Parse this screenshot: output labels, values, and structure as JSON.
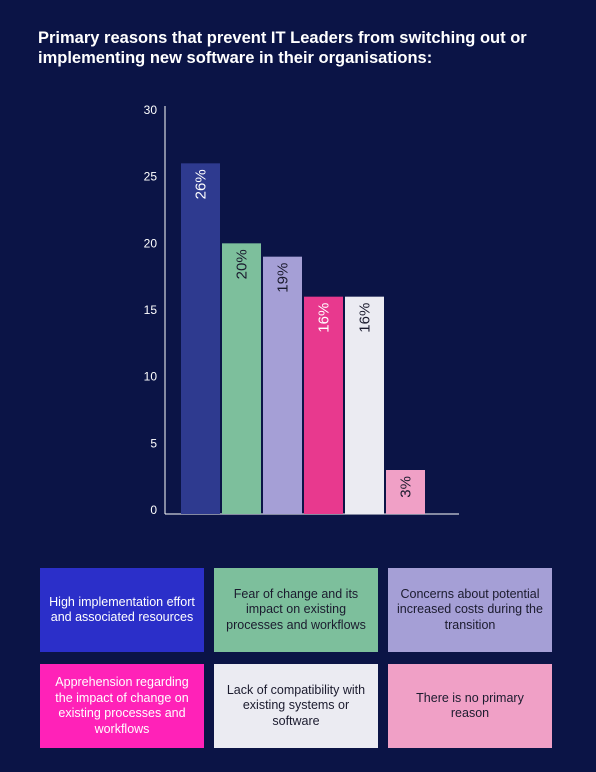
{
  "title": "Primary reasons that prevent IT Leaders from switching out or implementing new software in their organisations:",
  "chart_data": {
    "type": "bar",
    "categories": [
      "High implementation effort and associated resources",
      "Fear of change and its impact on existing processes and workflows",
      "Concerns about potential increased costs during the transition",
      "Apprehension regarding the impact of change on existing processes and workflows",
      "Lack of compatibility with existing systems or software",
      "There is no primary reason"
    ],
    "values": [
      26,
      20,
      19,
      16,
      16,
      3
    ],
    "data_labels": [
      "26%",
      "20%",
      "19%",
      "16%",
      "16%",
      "3%"
    ],
    "ylim": [
      0,
      30
    ],
    "yticks": [
      0,
      5,
      10,
      15,
      20,
      25,
      30
    ],
    "bar_colors": [
      "#2e3a8f",
      "#7dbf9c",
      "#a59fd6",
      "#e8398e",
      "#ebebf2",
      "#f0a0c6"
    ],
    "label_colors": [
      "#ffffff",
      "#1b1b2e",
      "#1b1b2e",
      "#ffffff",
      "#1b1b2e",
      "#1b1b2e"
    ],
    "grid": false,
    "legend": "bottom"
  },
  "legend": [
    {
      "label": "High implementation effort and associated resources",
      "color": "#2b2fc9",
      "text_color": "#ffffff"
    },
    {
      "label": "Fear of change and its impact on existing processes and workflows",
      "color": "#7dbf9c",
      "text_color": "#1b1b2e"
    },
    {
      "label": "Concerns about potential increased costs during the transition",
      "color": "#a59fd6",
      "text_color": "#1b1b2e"
    },
    {
      "label": "Apprehension regarding the impact of change on existing processes and workflows",
      "color": "#ff22b8",
      "text_color": "#ffffff"
    },
    {
      "label": "Lack of compatibility with existing systems or software",
      "color": "#ebebf2",
      "text_color": "#1b1b2e"
    },
    {
      "label": "There is no primary reason",
      "color": "#f0a0c6",
      "text_color": "#1b1b2e"
    }
  ]
}
